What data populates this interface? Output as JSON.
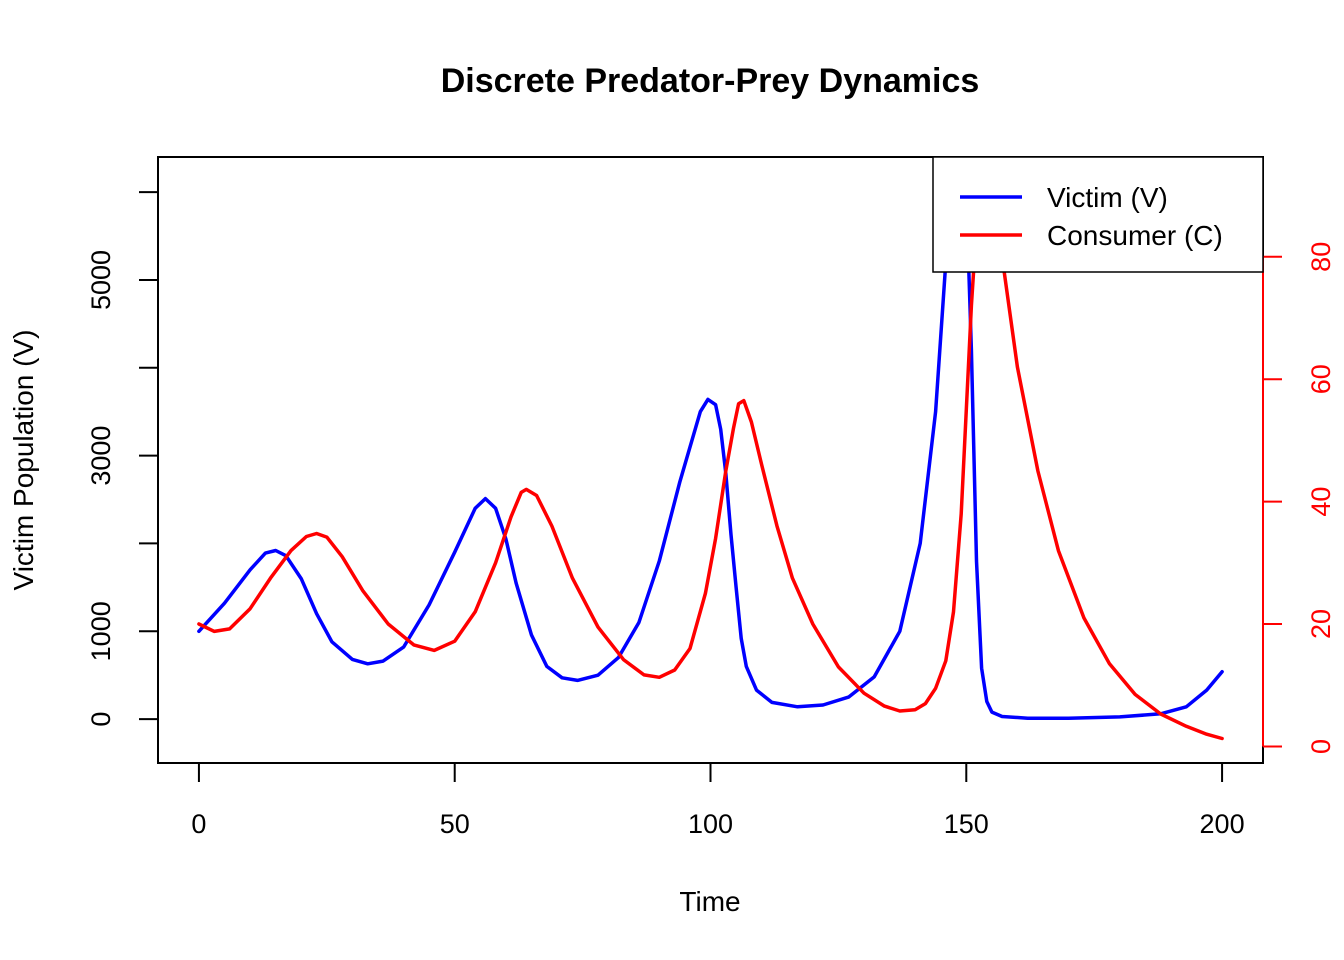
{
  "chart_data": {
    "type": "line",
    "title": "Discrete Predator-Prey Dynamics",
    "xlabel": "Time",
    "ylabel": "Victim Population (V)",
    "xlim": [
      -8,
      208
    ],
    "ylim": [
      -500,
      6400
    ],
    "y2lim": [
      -2.7,
      96.3
    ],
    "x_ticks": [
      0,
      50,
      100,
      150,
      200
    ],
    "y_ticks": [
      0,
      1000,
      2000,
      3000,
      4000,
      5000,
      6000
    ],
    "y_tick_labels": [
      "0",
      "1000",
      "",
      "3000",
      "",
      "5000",
      ""
    ],
    "y2_ticks": [
      0,
      20,
      40,
      60,
      80
    ],
    "grid": false,
    "legend_position": "top-right",
    "series": [
      {
        "name": "Victim (V)",
        "axis": "left",
        "color": "#0000ff",
        "points": [
          [
            0,
            1000
          ],
          [
            5,
            1320
          ],
          [
            10,
            1700
          ],
          [
            13,
            1890
          ],
          [
            15,
            1920
          ],
          [
            17,
            1860
          ],
          [
            20,
            1600
          ],
          [
            23,
            1200
          ],
          [
            26,
            880
          ],
          [
            30,
            680
          ],
          [
            33,
            630
          ],
          [
            36,
            660
          ],
          [
            40,
            820
          ],
          [
            45,
            1300
          ],
          [
            50,
            1900
          ],
          [
            54,
            2400
          ],
          [
            56,
            2510
          ],
          [
            58,
            2400
          ],
          [
            60,
            2050
          ],
          [
            62,
            1550
          ],
          [
            65,
            960
          ],
          [
            68,
            600
          ],
          [
            71,
            470
          ],
          [
            74,
            440
          ],
          [
            78,
            500
          ],
          [
            82,
            700
          ],
          [
            86,
            1100
          ],
          [
            90,
            1800
          ],
          [
            94,
            2700
          ],
          [
            98,
            3500
          ],
          [
            99.5,
            3640
          ],
          [
            101,
            3580
          ],
          [
            102,
            3300
          ],
          [
            103,
            2800
          ],
          [
            104,
            2100
          ],
          [
            105,
            1500
          ],
          [
            106,
            920
          ],
          [
            107,
            600
          ],
          [
            109,
            330
          ],
          [
            112,
            190
          ],
          [
            117,
            140
          ],
          [
            122,
            160
          ],
          [
            127,
            250
          ],
          [
            132,
            480
          ],
          [
            137,
            1000
          ],
          [
            141,
            2000
          ],
          [
            144,
            3500
          ],
          [
            146,
            5200
          ],
          [
            147,
            6200
          ],
          [
            148,
            6500
          ],
          [
            149,
            6500
          ],
          [
            150,
            6000
          ],
          [
            151,
            4200
          ],
          [
            152,
            1800
          ],
          [
            153,
            580
          ],
          [
            154,
            200
          ],
          [
            155,
            80
          ],
          [
            157,
            30
          ],
          [
            162,
            10
          ],
          [
            170,
            10
          ],
          [
            180,
            25
          ],
          [
            188,
            60
          ],
          [
            193,
            140
          ],
          [
            197,
            330
          ],
          [
            200,
            540
          ]
        ]
      },
      {
        "name": "Consumer (C)",
        "axis": "right",
        "color": "#ff0000",
        "points": [
          [
            0,
            20
          ],
          [
            3,
            18.8
          ],
          [
            6,
            19.2
          ],
          [
            10,
            22.5
          ],
          [
            14,
            27.5
          ],
          [
            18,
            32
          ],
          [
            21,
            34.3
          ],
          [
            23,
            34.8
          ],
          [
            25,
            34.2
          ],
          [
            28,
            31
          ],
          [
            32,
            25.5
          ],
          [
            37,
            20
          ],
          [
            42,
            16.6
          ],
          [
            46,
            15.7
          ],
          [
            50,
            17.2
          ],
          [
            54,
            22
          ],
          [
            58,
            30
          ],
          [
            61,
            37.5
          ],
          [
            63,
            41.5
          ],
          [
            64,
            42
          ],
          [
            66,
            41
          ],
          [
            69,
            36
          ],
          [
            73,
            27.5
          ],
          [
            78,
            19.5
          ],
          [
            83,
            14.2
          ],
          [
            87,
            11.7
          ],
          [
            90,
            11.3
          ],
          [
            93,
            12.5
          ],
          [
            96,
            16
          ],
          [
            99,
            25
          ],
          [
            101,
            34
          ],
          [
            103,
            45
          ],
          [
            104.5,
            52
          ],
          [
            105.5,
            56
          ],
          [
            106.5,
            56.5
          ],
          [
            108,
            53
          ],
          [
            110,
            46
          ],
          [
            113,
            36
          ],
          [
            116,
            27.5
          ],
          [
            120,
            20
          ],
          [
            125,
            13
          ],
          [
            130,
            8.7
          ],
          [
            134,
            6.6
          ],
          [
            137,
            5.8
          ],
          [
            140,
            6
          ],
          [
            142,
            7
          ],
          [
            144,
            9.5
          ],
          [
            146,
            14
          ],
          [
            147.5,
            22
          ],
          [
            149,
            38
          ],
          [
            150,
            55
          ],
          [
            151,
            72
          ],
          [
            152,
            85
          ],
          [
            153,
            93
          ],
          [
            154,
            95
          ],
          [
            155,
            93
          ],
          [
            157,
            80
          ],
          [
            160,
            62
          ],
          [
            164,
            45
          ],
          [
            168,
            32
          ],
          [
            173,
            21
          ],
          [
            178,
            13.5
          ],
          [
            183,
            8.5
          ],
          [
            188,
            5.3
          ],
          [
            193,
            3.3
          ],
          [
            197,
            2
          ],
          [
            200,
            1.3
          ]
        ]
      }
    ]
  }
}
